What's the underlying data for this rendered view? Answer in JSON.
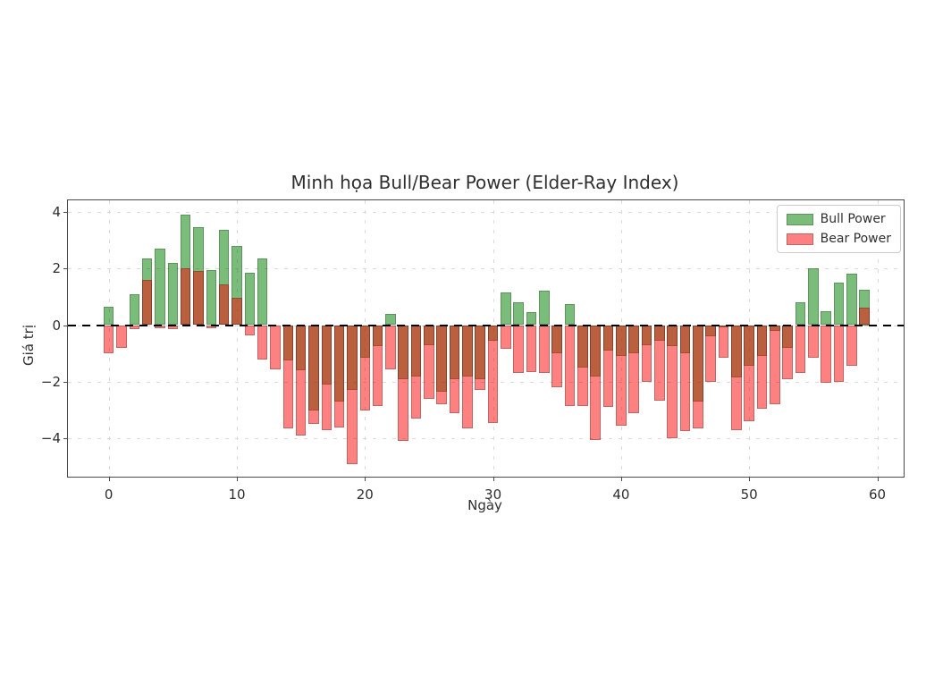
{
  "title": "Minh họa Bull/Bear Power (Elder-Ray Index)",
  "axes": {
    "xlabel": "Ngày",
    "ylabel": "Giá trị",
    "x_tick_labels": [
      "0",
      "10",
      "20",
      "30",
      "40",
      "50",
      "60"
    ],
    "y_tick_labels": [
      "4",
      "2",
      "0",
      "−2",
      "−4"
    ]
  },
  "legend": {
    "items": [
      {
        "label": "Bull Power",
        "color": "rgba(0,128,0,0.52)"
      },
      {
        "label": "Bear Power",
        "color": "rgba(252,3,3,0.50)"
      }
    ]
  },
  "chart_data": {
    "type": "bar",
    "title": "Minh họa Bull/Bear Power (Elder-Ray Index)",
    "xlabel": "Ngày",
    "ylabel": "Giá trị",
    "x": [
      0,
      1,
      2,
      3,
      4,
      5,
      6,
      7,
      8,
      9,
      10,
      11,
      12,
      13,
      14,
      15,
      16,
      17,
      18,
      19,
      20,
      21,
      22,
      23,
      24,
      25,
      26,
      27,
      28,
      29,
      30,
      31,
      32,
      33,
      34,
      35,
      36,
      37,
      38,
      39,
      40,
      41,
      42,
      43,
      44,
      45,
      46,
      47,
      48,
      49,
      50,
      51,
      52,
      53,
      54,
      55,
      56,
      57,
      58,
      59
    ],
    "series": [
      {
        "name": "Bull Power",
        "color": "green (alpha 0.5)",
        "values": [
          0.65,
          0.0,
          1.1,
          2.35,
          2.7,
          2.2,
          3.9,
          3.45,
          1.95,
          3.35,
          2.8,
          1.85,
          2.35,
          0.0,
          -1.25,
          -1.6,
          -3.0,
          -2.1,
          -2.7,
          -2.3,
          -1.15,
          -0.75,
          0.4,
          -1.9,
          -1.8,
          -0.7,
          -2.35,
          -1.9,
          -1.8,
          -1.9,
          -0.55,
          1.15,
          0.8,
          0.45,
          1.2,
          -1.0,
          0.75,
          -1.5,
          -1.8,
          -0.9,
          -1.1,
          -1.0,
          -0.7,
          -0.55,
          -0.75,
          -1.0,
          -2.7,
          -0.4,
          -0.05,
          -1.85,
          -1.45,
          -1.1,
          -0.2,
          -0.8,
          0.8,
          2.0,
          0.5,
          1.5,
          1.8,
          1.25
        ]
      },
      {
        "name": "Bear Power",
        "color": "red (alpha 0.5)",
        "values": [
          -1.0,
          -0.8,
          -0.15,
          1.6,
          -0.1,
          -0.15,
          2.0,
          1.9,
          -0.1,
          1.45,
          0.95,
          -0.35,
          -1.2,
          -1.55,
          -3.65,
          -3.9,
          -3.5,
          -3.7,
          -3.6,
          -4.9,
          -3.0,
          -2.85,
          -1.55,
          -4.1,
          -3.3,
          -2.6,
          -2.8,
          -3.1,
          -3.65,
          -2.3,
          -3.45,
          -0.85,
          -1.7,
          -1.65,
          -1.7,
          -2.2,
          -2.85,
          -2.85,
          -4.05,
          -2.9,
          -3.55,
          -3.1,
          -2.0,
          -2.65,
          -4.0,
          -3.75,
          -3.65,
          -2.0,
          -1.15,
          -3.7,
          -3.4,
          -2.95,
          -2.8,
          -1.9,
          -1.7,
          -1.15,
          -2.05,
          -2.0,
          -1.45,
          0.6
        ]
      }
    ],
    "x_ticks": [
      0,
      10,
      20,
      30,
      40,
      50,
      60
    ],
    "y_ticks": [
      4,
      2,
      0,
      -2,
      -4
    ],
    "xlim": [
      -3.2,
      62
    ],
    "ylim": [
      -5.35,
      4.4
    ],
    "grid": true,
    "grid_style": "light gray dashed, both axes",
    "zero_line": {
      "value": 0,
      "style": "dashed",
      "color": "#000000"
    },
    "legend_position": "upper right",
    "note": "Both series are drawn at the same x positions with alpha ~0.5; where green (bull) and red (bear) bars overlap the fill appears brownish-orange"
  }
}
